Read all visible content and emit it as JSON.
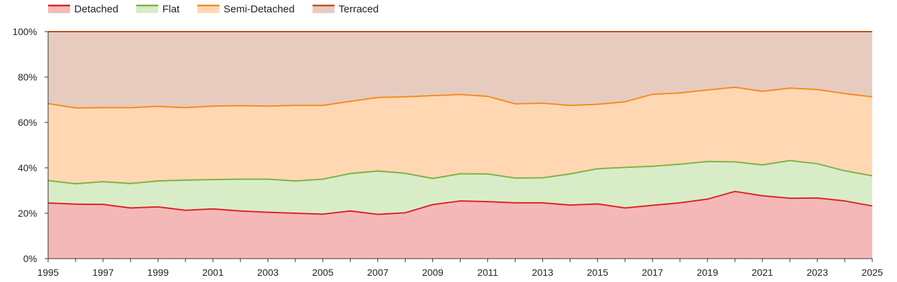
{
  "chart_data": {
    "type": "area",
    "stacked": true,
    "normalized": true,
    "x": [
      1995,
      1996,
      1997,
      1998,
      1999,
      2000,
      2001,
      2002,
      2003,
      2004,
      2005,
      2006,
      2007,
      2008,
      2009,
      2010,
      2011,
      2012,
      2013,
      2014,
      2015,
      2016,
      2017,
      2018,
      2019,
      2020,
      2021,
      2022,
      2023,
      2024,
      2025
    ],
    "x_tick_labels": [
      "1995",
      "1997",
      "1999",
      "2001",
      "2003",
      "2005",
      "2007",
      "2009",
      "2011",
      "2013",
      "2015",
      "2017",
      "2019",
      "2021",
      "2023",
      "2025"
    ],
    "y_tick_labels": [
      "0%",
      "20%",
      "40%",
      "60%",
      "80%",
      "100%"
    ],
    "ylim": [
      0,
      100
    ],
    "y_unit": "%",
    "grid": true,
    "legend_position": "top-left",
    "series": [
      {
        "name": "Detached",
        "line_color": "#dd2222",
        "fill_color": "#f5b8b8",
        "cumulative": [
          24.5,
          24.0,
          23.9,
          22.3,
          22.8,
          21.3,
          21.9,
          21.0,
          20.4,
          20.0,
          19.6,
          21.0,
          19.5,
          20.2,
          23.8,
          25.4,
          25.1,
          24.6,
          24.6,
          23.6,
          24.1,
          22.3,
          23.5,
          24.6,
          26.2,
          29.6,
          27.7,
          26.6,
          26.7,
          25.4,
          23.2
        ]
      },
      {
        "name": "Flat",
        "line_color": "#7cb342",
        "fill_color": "#d8ecc8",
        "cumulative": [
          34.4,
          33.0,
          33.9,
          33.1,
          34.2,
          34.6,
          34.8,
          35.0,
          35.0,
          34.2,
          35.0,
          37.5,
          38.6,
          37.6,
          35.3,
          37.4,
          37.3,
          35.5,
          35.6,
          37.3,
          39.6,
          40.2,
          40.7,
          41.6,
          42.8,
          42.6,
          41.3,
          43.2,
          41.8,
          38.7,
          36.5
        ]
      },
      {
        "name": "Semi-Detached",
        "line_color": "#f28c1e",
        "fill_color": "#ffd8b3",
        "cumulative": [
          68.3,
          66.4,
          66.5,
          66.5,
          67.1,
          66.5,
          67.2,
          67.4,
          67.2,
          67.5,
          67.5,
          69.3,
          71.0,
          71.3,
          71.8,
          72.3,
          71.5,
          68.2,
          68.5,
          67.5,
          68.0,
          69.1,
          72.4,
          73.0,
          74.3,
          75.5,
          73.7,
          75.1,
          74.5,
          72.7,
          71.3
        ]
      },
      {
        "name": "Terraced",
        "line_color": "#c0501e",
        "fill_color": "#e8cbbf",
        "cumulative": [
          100,
          100,
          100,
          100,
          100,
          100,
          100,
          100,
          100,
          100,
          100,
          100,
          100,
          100,
          100,
          100,
          100,
          100,
          100,
          100,
          100,
          100,
          100,
          100,
          100,
          100,
          100,
          100,
          100,
          100,
          100
        ]
      }
    ]
  }
}
